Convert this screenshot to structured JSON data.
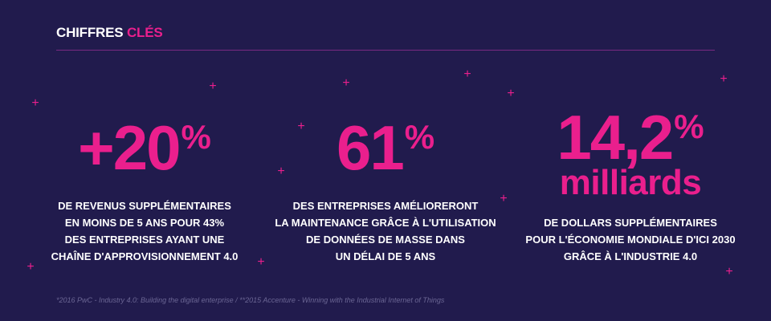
{
  "header": {
    "title_main": "CHIFFRES",
    "title_accent": "CLÉS"
  },
  "stats": [
    {
      "value": "+20",
      "unit": "%",
      "lines": [
        "DE REVENUS SUPPLÉMENTAIRES",
        "EN MOINS DE 5 ANS POUR 43%",
        "DES ENTREPRISES AYANT UNE",
        "CHAÎNE D'APPROVISIONNEMENT 4.0"
      ]
    },
    {
      "value": "61",
      "unit": "%",
      "lines": [
        "DES ENTREPRISES AMÉLIORERONT",
        "LA MAINTENANCE GRÂCE À L'UTILISATION",
        "DE DONNÉES DE MASSE DANS",
        "UN DÉLAI DE 5 ANS"
      ]
    },
    {
      "value": "14,2",
      "unit": "%",
      "subvalue": "milliards",
      "lines": [
        "DE DOLLARS SUPPLÉMENTAIRES",
        "POUR L'ÉCONOMIE MONDIALE D'ICI 2030",
        "GRÂCE À L'INDUSTRIE 4.0"
      ]
    }
  ],
  "decoration": {
    "plus_glyph": "+"
  },
  "footnote": "*2016 PwC - Industry 4.0: Building the digital enterprise / **2015 Accenture - Winning with the Industrial Internet of Things",
  "colors": {
    "background": "#211b4d",
    "accent": "#ea1f8d",
    "text": "#ffffff"
  }
}
